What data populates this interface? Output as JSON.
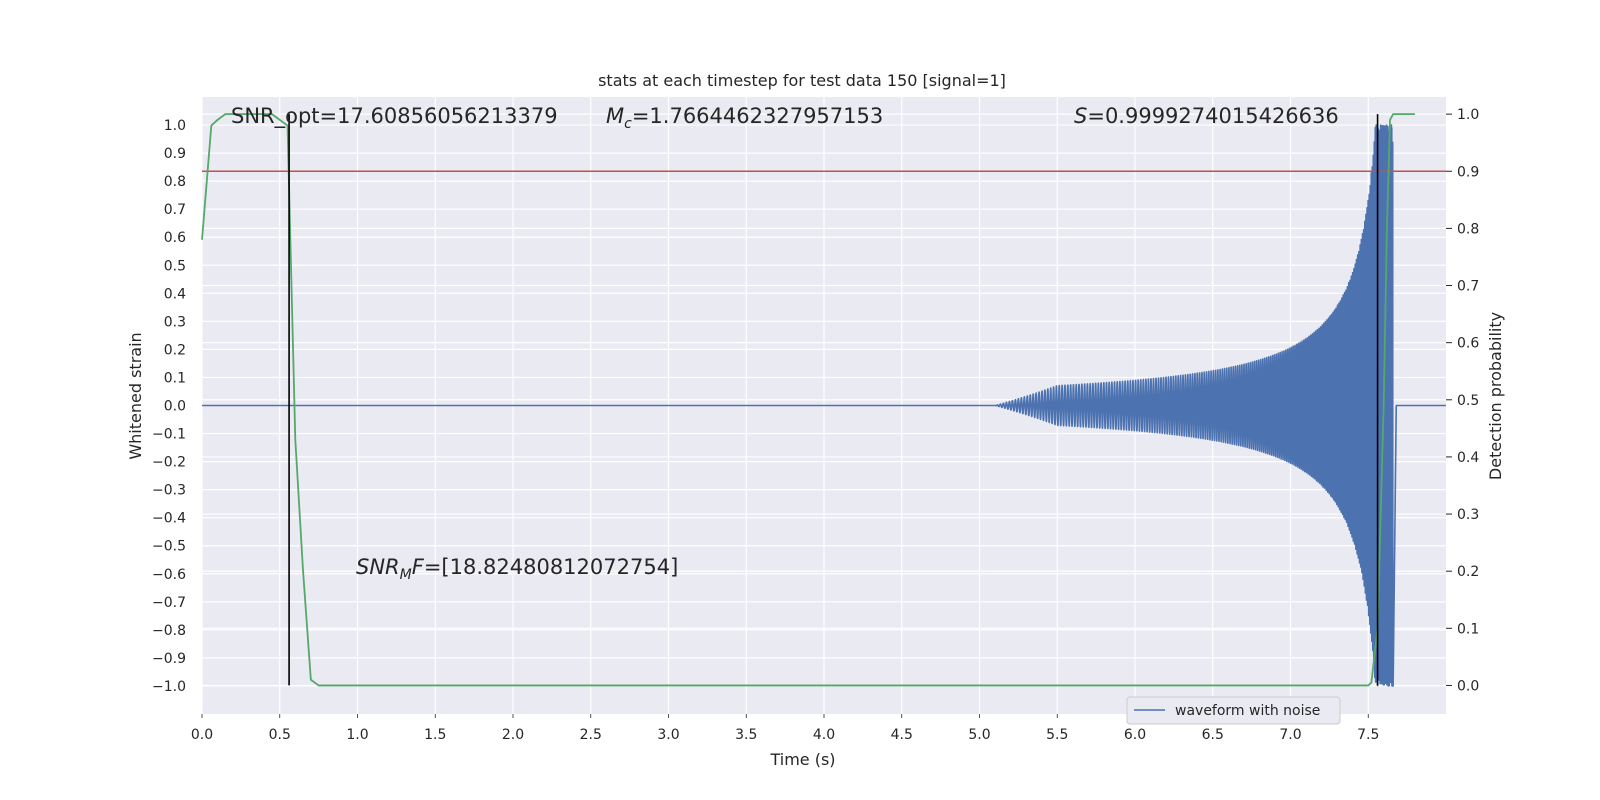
{
  "chart_data": {
    "type": "line",
    "title": "stats at each timestep for test data 150 [signal=1]",
    "xlabel": "Time (s)",
    "ylabel": "Whitened strain",
    "y2label": "Detection probability",
    "xlim": [
      0.0,
      8.0
    ],
    "ylim": [
      -1.1,
      1.1
    ],
    "y2lim": [
      -0.05,
      1.03
    ],
    "x_ticks": [
      "0.0",
      "0.5",
      "1.0",
      "1.5",
      "2.0",
      "2.5",
      "3.0",
      "3.5",
      "4.0",
      "4.5",
      "5.0",
      "5.5",
      "6.0",
      "6.5",
      "7.0",
      "7.5"
    ],
    "y_ticks": [
      "1.0",
      "0.9",
      "0.8",
      "0.7",
      "0.6",
      "0.5",
      "0.4",
      "0.3",
      "0.2",
      "0.1",
      "0.0",
      "−0.1",
      "−0.2",
      "−0.3",
      "−0.4",
      "−0.5",
      "−0.6",
      "−0.7",
      "−0.8",
      "−0.9",
      "−1.0"
    ],
    "y2_ticks": [
      "1.0",
      "0.9",
      "0.8",
      "0.7",
      "0.6",
      "0.5",
      "0.4",
      "0.3",
      "0.2",
      "0.1",
      "0.0"
    ],
    "grid": true,
    "legend_position": "bottom-right",
    "colors": {
      "background": "#eaeaf2",
      "waveform": "#4c72b0",
      "probability": "#55a868",
      "threshold": "#c44e52",
      "markers": "#000000"
    },
    "series": [
      {
        "name": "waveform with noise",
        "axis": "left",
        "description_points": {
          "start_time": 0.0,
          "chirp_start_time": 5.1,
          "merger_time": 7.66,
          "peak_amplitude": 1.0
        }
      },
      {
        "axis": "right",
        "x": [
          0.0,
          0.06,
          0.1,
          0.15,
          0.25,
          0.35,
          0.45,
          0.5,
          0.55,
          0.6,
          0.65,
          0.7,
          0.75,
          0.8,
          1.0,
          2.0,
          3.0,
          4.0,
          5.0,
          6.0,
          7.0,
          7.5,
          7.52,
          7.56,
          7.6,
          7.62,
          7.64,
          7.66,
          7.7,
          7.8
        ],
        "y": [
          0.78,
          0.98,
          0.99,
          1.0,
          1.0,
          1.0,
          1.0,
          0.99,
          0.98,
          0.43,
          0.2,
          0.01,
          0.0,
          0.0,
          0.0,
          0.0,
          0.0,
          0.0,
          0.0,
          0.0,
          0.0,
          0.0,
          0.005,
          0.1,
          0.5,
          0.8,
          0.99,
          1.0,
          1.0,
          1.0
        ]
      },
      {
        "axis": "right",
        "type": "hline",
        "y": 0.9
      }
    ],
    "vlines": [
      0.56,
      7.56
    ],
    "annotations": {
      "snr_opt": "SNR_opt=17.60856056213379",
      "mc_symbol": "M",
      "mc_sub": "c",
      "mc_value": "=1.7664462327957153",
      "s_symbol": "S",
      "s_value": "=0.9999274015426636",
      "snrmf_symbol": "SNR",
      "snrmf_sub": "M",
      "snrmf_mid": "F",
      "snrmf_value": "=[18.82480812072754]"
    }
  }
}
